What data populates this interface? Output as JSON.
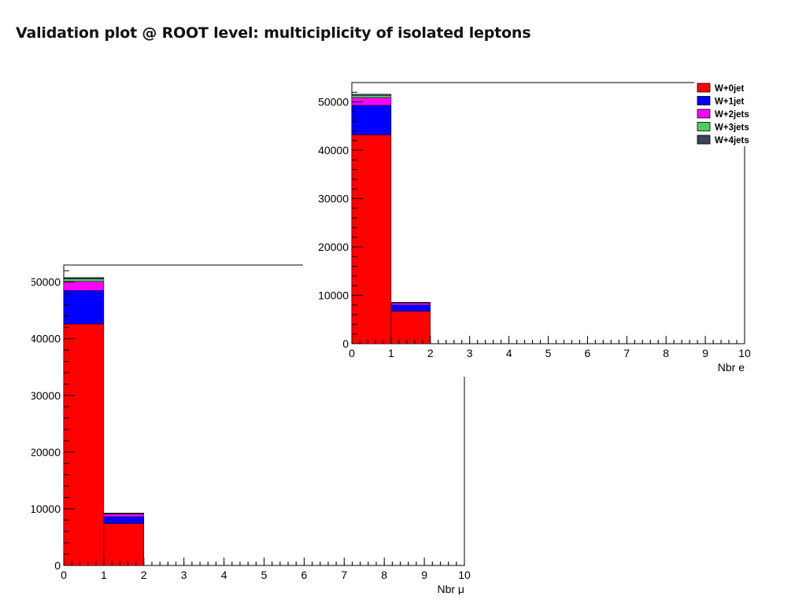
{
  "slide": {
    "title": "Validation plot @ ROOT level: multiciplicity of isolated leptons"
  },
  "legend": {
    "entries": [
      {
        "label": "W+0jet",
        "color": "#ff0000"
      },
      {
        "label": "W+1jet",
        "color": "#0000ff"
      },
      {
        "label": "W+2jets",
        "color": "#ff00ff"
      },
      {
        "label": "W+3jets",
        "color": "#4dcc66"
      },
      {
        "label": "W+4jets",
        "color": "#3d4259"
      }
    ]
  },
  "chart_data": [
    {
      "id": "mu",
      "type": "bar",
      "stacked": true,
      "histogram": true,
      "xlabel": "Nbr μ",
      "bin_edges": [
        0,
        1,
        2
      ],
      "xlim": [
        0,
        10
      ],
      "ylim": [
        0,
        53000
      ],
      "x_ticks": [
        0,
        1,
        2,
        3,
        4,
        5,
        6,
        7,
        8,
        9,
        10
      ],
      "y_ticks": [
        0,
        10000,
        20000,
        30000,
        40000,
        50000
      ],
      "legend_position": "top-right",
      "series": [
        {
          "name": "W+0jet",
          "values": [
            42600,
            7400
          ],
          "color": "#ff0000"
        },
        {
          "name": "W+1jet",
          "values": [
            5900,
            1200
          ],
          "color": "#0000ff"
        },
        {
          "name": "W+2jets",
          "values": [
            1600,
            450
          ],
          "color": "#ff00ff"
        },
        {
          "name": "W+3jets",
          "values": [
            450,
            120
          ],
          "color": "#4dcc66"
        },
        {
          "name": "W+4jets",
          "values": [
            250,
            80
          ],
          "color": "#3d4259"
        }
      ]
    },
    {
      "id": "e",
      "type": "bar",
      "stacked": true,
      "histogram": true,
      "xlabel": "Nbr e",
      "bin_edges": [
        0,
        1,
        2
      ],
      "xlim": [
        0,
        10
      ],
      "ylim": [
        0,
        54000
      ],
      "x_ticks": [
        0,
        1,
        2,
        3,
        4,
        5,
        6,
        7,
        8,
        9,
        10
      ],
      "y_ticks": [
        0,
        10000,
        20000,
        30000,
        40000,
        50000
      ],
      "legend_position": "top-right",
      "series": [
        {
          "name": "W+0jet",
          "values": [
            43200,
            6700
          ],
          "color": "#ff0000"
        },
        {
          "name": "W+1jet",
          "values": [
            6100,
            1300
          ],
          "color": "#0000ff"
        },
        {
          "name": "W+2jets",
          "values": [
            1600,
            400
          ],
          "color": "#ff00ff"
        },
        {
          "name": "W+3jets",
          "values": [
            450,
            100
          ],
          "color": "#4dcc66"
        },
        {
          "name": "W+4jets",
          "values": [
            250,
            60
          ],
          "color": "#3d4259"
        }
      ]
    }
  ]
}
